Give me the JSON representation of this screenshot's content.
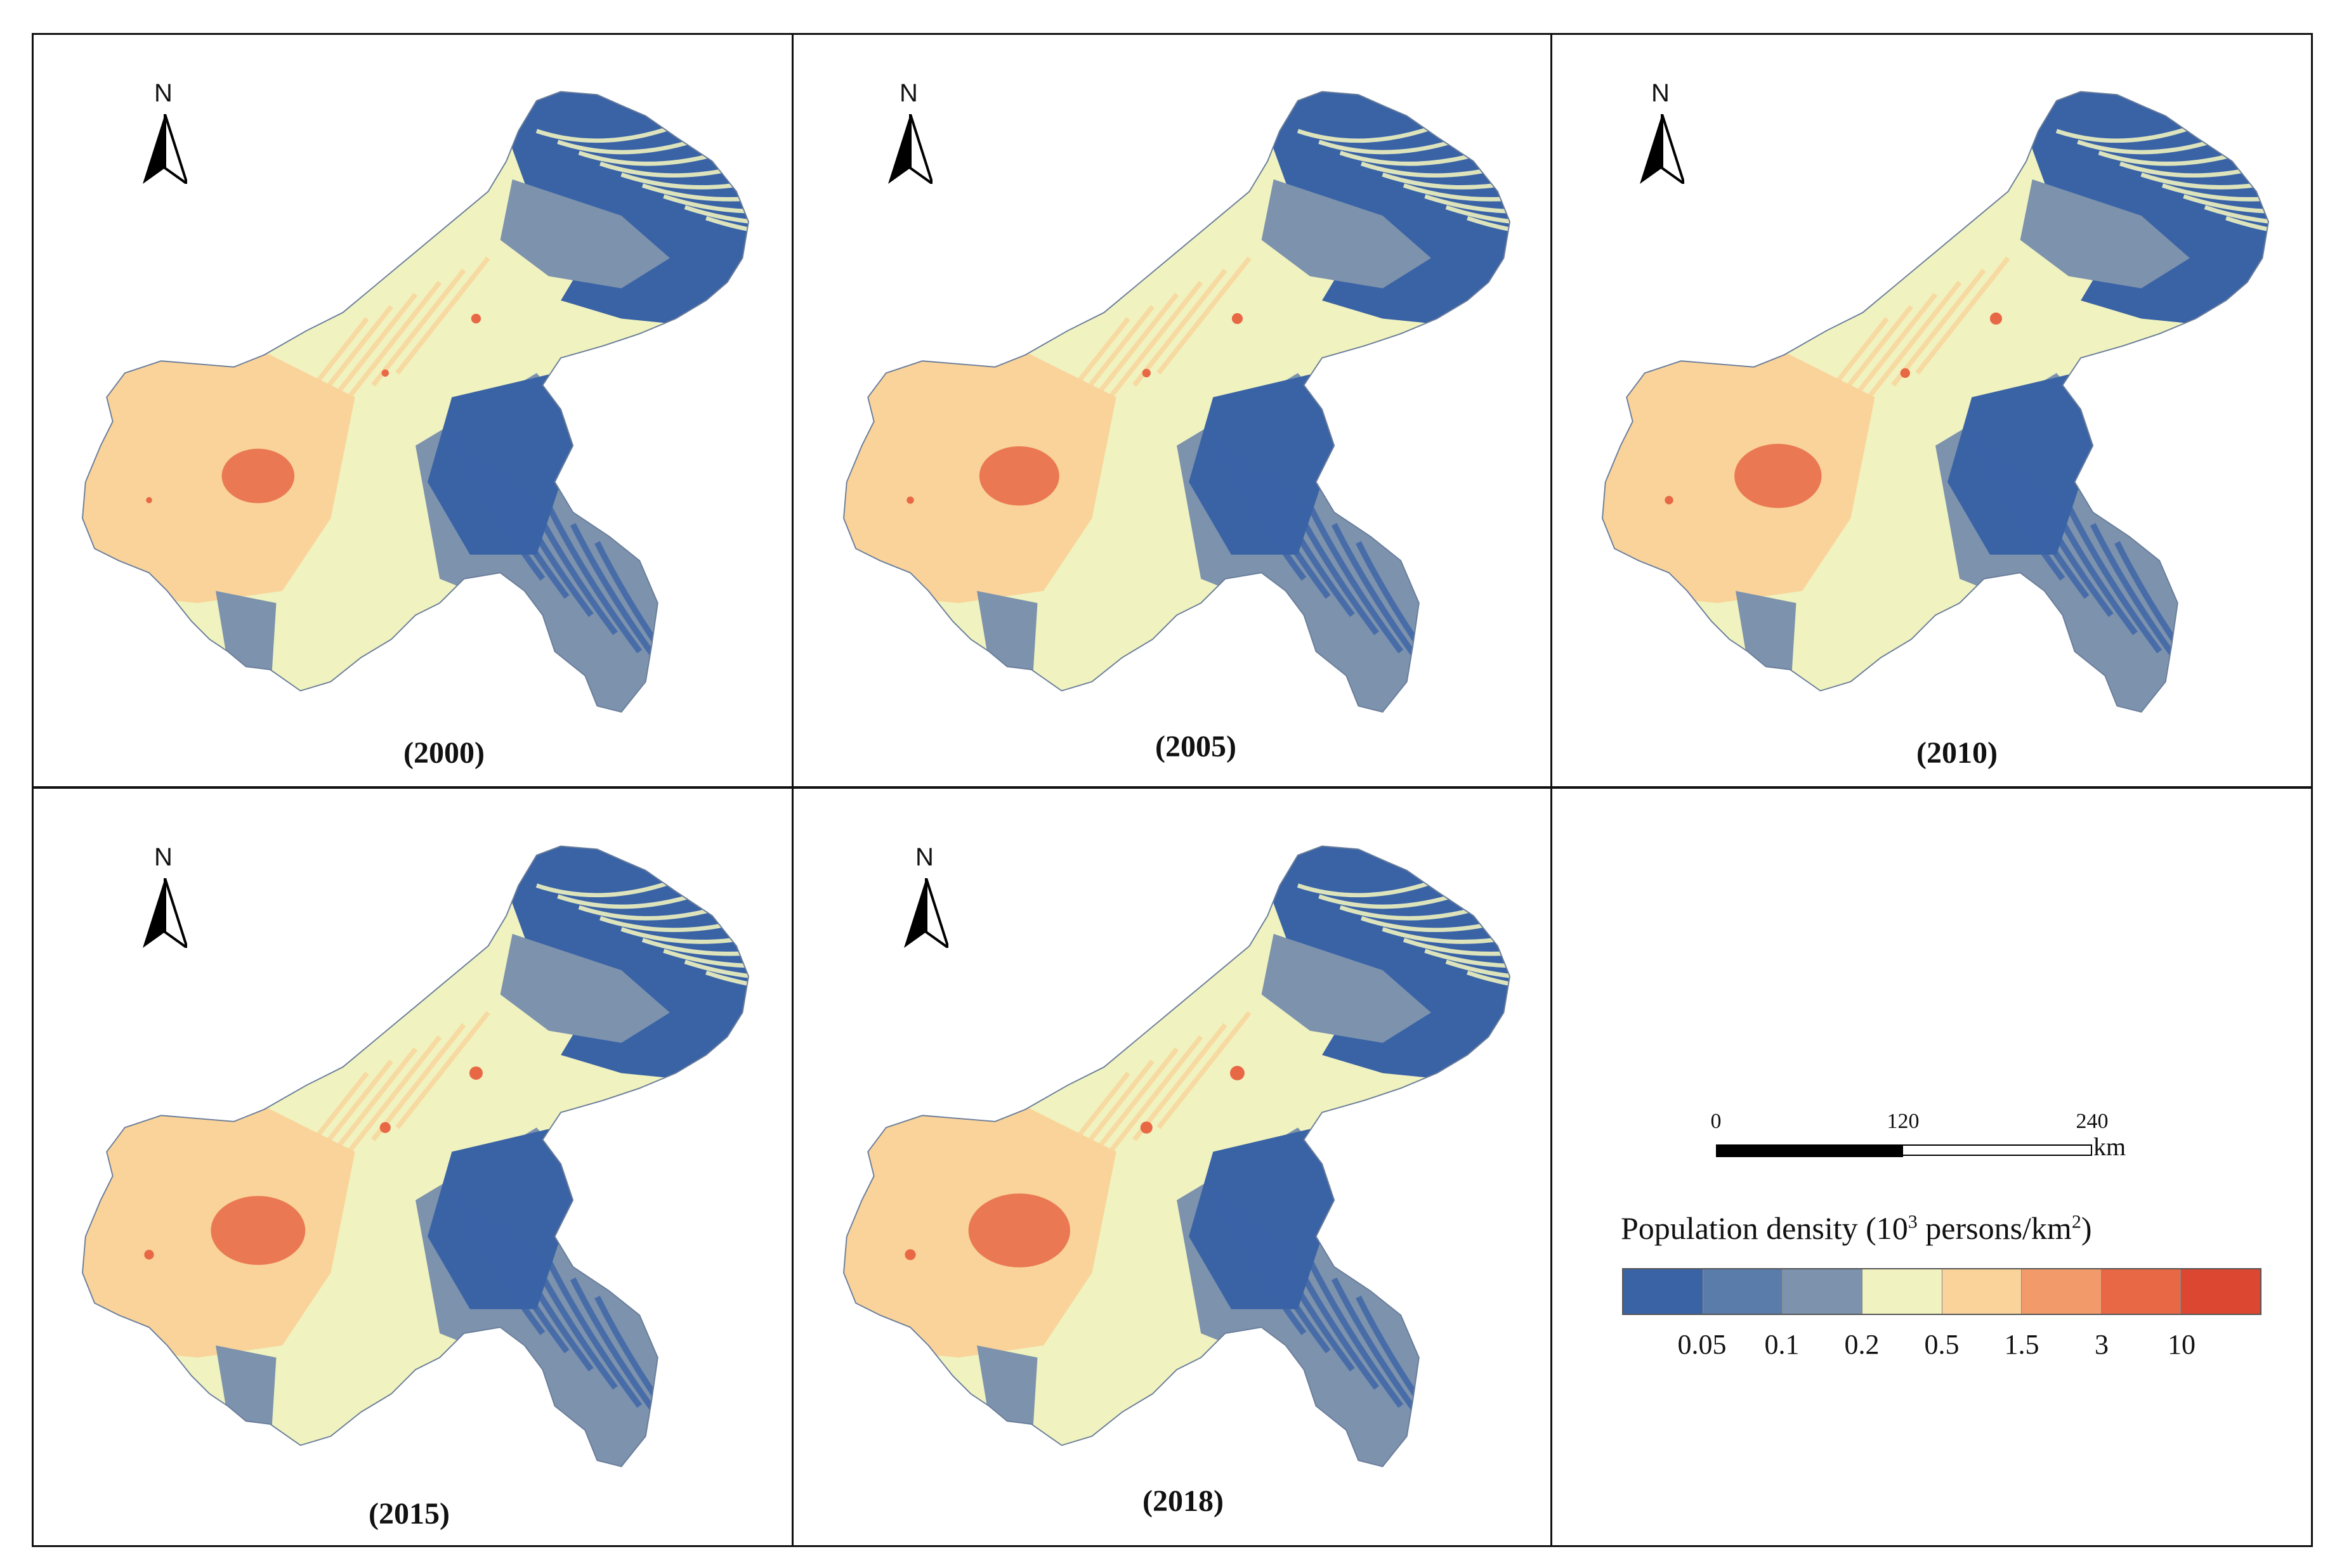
{
  "panels": [
    {
      "year_label": "(2000)",
      "north_label": "N"
    },
    {
      "year_label": "(2005)",
      "north_label": "N"
    },
    {
      "year_label": "(2010)",
      "north_label": "N"
    },
    {
      "year_label": "(2015)",
      "north_label": "N"
    },
    {
      "year_label": "(2018)",
      "north_label": "N"
    }
  ],
  "scale_bar": {
    "labels": [
      "0",
      "120",
      "240"
    ],
    "unit": "km"
  },
  "legend": {
    "title_prefix": "Population density (10",
    "title_exp": "3",
    "title_mid": " persons/km",
    "title_exp2": "2",
    "title_suffix": ")",
    "colors": [
      "#3a63a6",
      "#5a7cab",
      "#7c92ad",
      "#f0f2bf",
      "#f9d39a",
      "#f29a6a",
      "#e86846",
      "#dc4732"
    ],
    "breaks": [
      "0.05",
      "0.1",
      "0.2",
      "0.5",
      "1.5",
      "3",
      "10"
    ]
  },
  "map_colors": {
    "very_low": "#3a63a6",
    "low": "#7c92ad",
    "mid": "#f0f2bf",
    "high": "#f9d39a",
    "very_high": "#e86846"
  }
}
